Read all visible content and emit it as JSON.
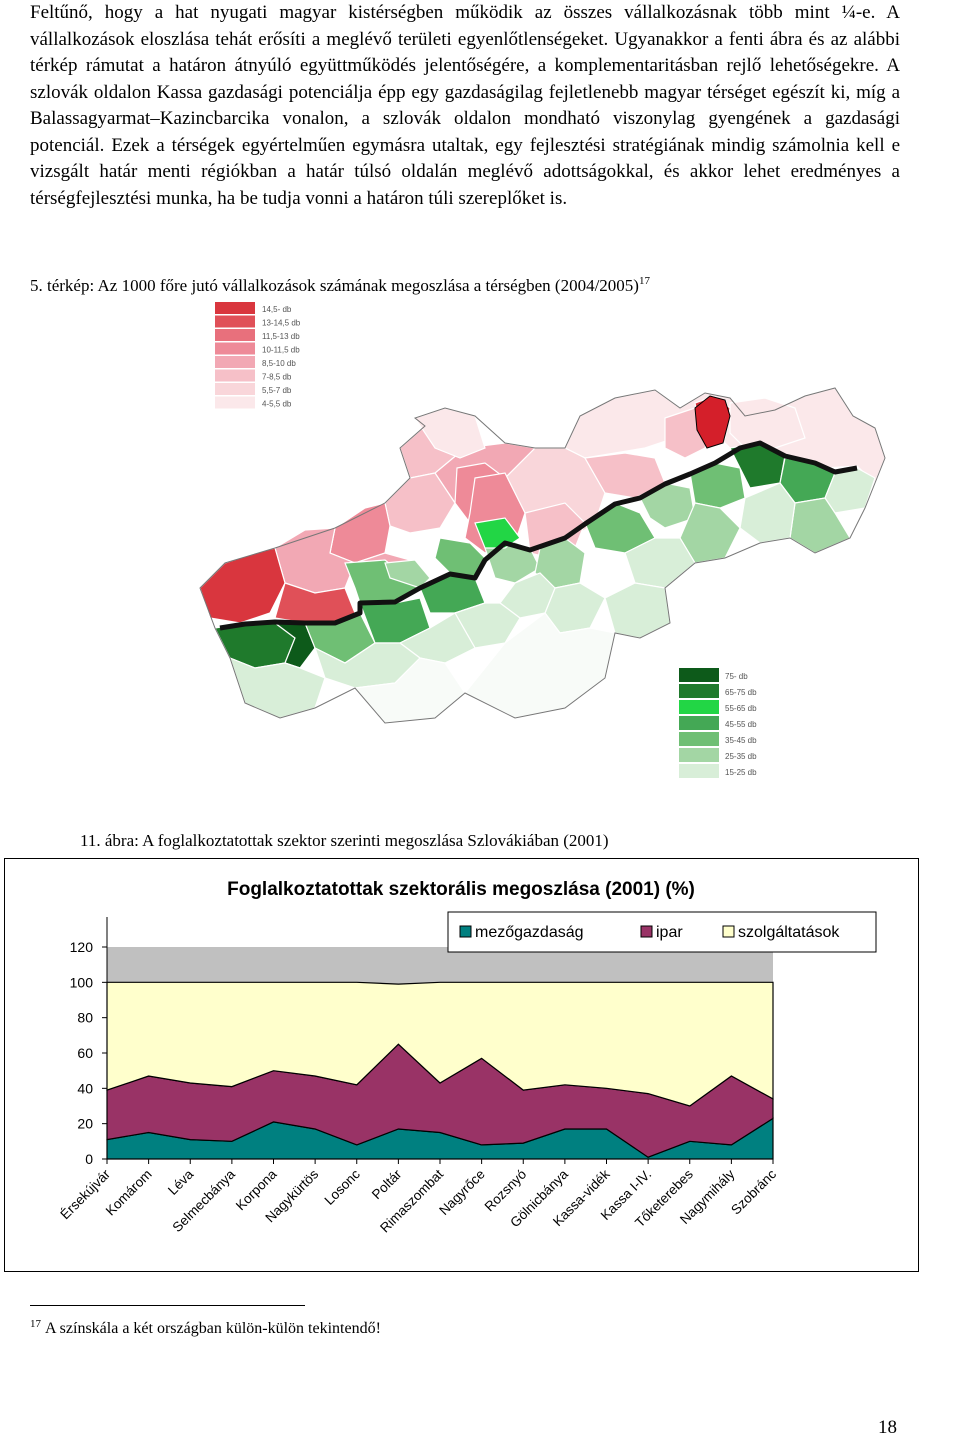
{
  "body_text": [
    "Feltűnő, hogy a hat nyugati magyar kistérségben működik az összes vállalkozásnak több mint ¼-e. A vállalkozások eloszlása tehát erősíti a meglévő területi egyenlőtlenségeket. Ugyanakkor a fenti ábra és az alábbi térkép rámutat a határon átnyúló együttműködés jelentőségére, a komplementaritásban rejlő lehetőségekre. A szlovák oldalon Kassa gazdasági potenciálja épp egy gazdaságilag fejletlenebb magyar térséget egészít ki, míg a Balassagyarmat–Kazincbarcika vonalon, a szlovák oldalon mondható viszonylag gyengének a gazdasági potenciál. Ezek a térségek egyértelműen egymásra utaltak, egy fejlesztési stratégiának mindig számolnia kell e vizsgált határ menti régiókban a határ túlsó oldalán meglévő adottságokkal, és akkor lehet eredményes a térségfejlesztési munka, ha be tudja vonni a határon túli szereplőket is."
  ],
  "map": {
    "caption": "5. térkép: Az 1000 főre jutó vállalkozások számának megoszlása a térségben (2004/2005)",
    "caption_footnote_ref": "17",
    "legend_hu": [
      {
        "label": "14,5-  db",
        "color": "#d9363e"
      },
      {
        "label": "13-14,5 db",
        "color": "#e05058"
      },
      {
        "label": "11,5-13 db",
        "color": "#e8707c"
      },
      {
        "label": "10-11,5 db",
        "color": "#ee8a98"
      },
      {
        "label": "8,5-10 db",
        "color": "#f2a8b4"
      },
      {
        "label": "7-8,5 db",
        "color": "#f6c0c8"
      },
      {
        "label": "5,5-7 db",
        "color": "#f9d6da"
      },
      {
        "label": "4-5,5 db",
        "color": "#fbe8ea"
      }
    ],
    "legend_sk": [
      {
        "label": "75-  db",
        "color": "#0d5a1a"
      },
      {
        "label": "65-75 db",
        "color": "#1f7a2c"
      },
      {
        "label": "55-65 db",
        "color": "#22d645"
      },
      {
        "label": "45-55 db",
        "color": "#44a855"
      },
      {
        "label": "35-45 db",
        "color": "#6fbf74"
      },
      {
        "label": "25-35 db",
        "color": "#a3d6a4"
      },
      {
        "label": "15-25 db",
        "color": "#d8eed8"
      }
    ]
  },
  "figure": {
    "caption": "11. ábra: A foglalkoztatottak szektor szerinti megoszlása Szlovákiában (2001)"
  },
  "chart_data": {
    "type": "area",
    "stacked": true,
    "title": "Foglalkoztatottak szektorális megoszlása (2001) (%)",
    "xlabel": "",
    "ylabel": "",
    "ylim": [
      0,
      120
    ],
    "yticks": [
      0,
      20,
      40,
      60,
      80,
      100,
      120
    ],
    "legend_position": "top-right",
    "categories": [
      "Érsekújvár",
      "Komárom",
      "Léva",
      "Selmecbánya",
      "Korpona",
      "Nagykürtös",
      "Losonc",
      "Poltár",
      "Rimaszombat",
      "Nagyrőce",
      "Rozsnyó",
      "Gölnicbánya",
      "Kassa-vidék",
      "Kassa I-IV.",
      "Tőketerebes",
      "Nagymihály",
      "Szobránc"
    ],
    "series": [
      {
        "name": "mezőgazdaság",
        "color": "#008080",
        "values": [
          11,
          15,
          11,
          10,
          21,
          17,
          8,
          17,
          15,
          8,
          9,
          17,
          17,
          1,
          10,
          8,
          23
        ]
      },
      {
        "name": "ipar",
        "color": "#993366",
        "values": [
          28,
          32,
          32,
          31,
          29,
          30,
          34,
          48,
          28,
          49,
          30,
          25,
          23,
          36,
          20,
          39,
          11
        ]
      },
      {
        "name": "szolgáltatások",
        "color": "#ffffcc",
        "values": [
          61,
          53,
          57,
          59,
          50,
          53,
          58,
          34,
          57,
          43,
          61,
          58,
          60,
          63,
          70,
          53,
          66
        ]
      }
    ],
    "plot_background": "#c0c0c0"
  },
  "footnote": {
    "number": "17",
    "text": "A színskála a két országban külön-külön tekintendő!"
  },
  "page_number": "18"
}
